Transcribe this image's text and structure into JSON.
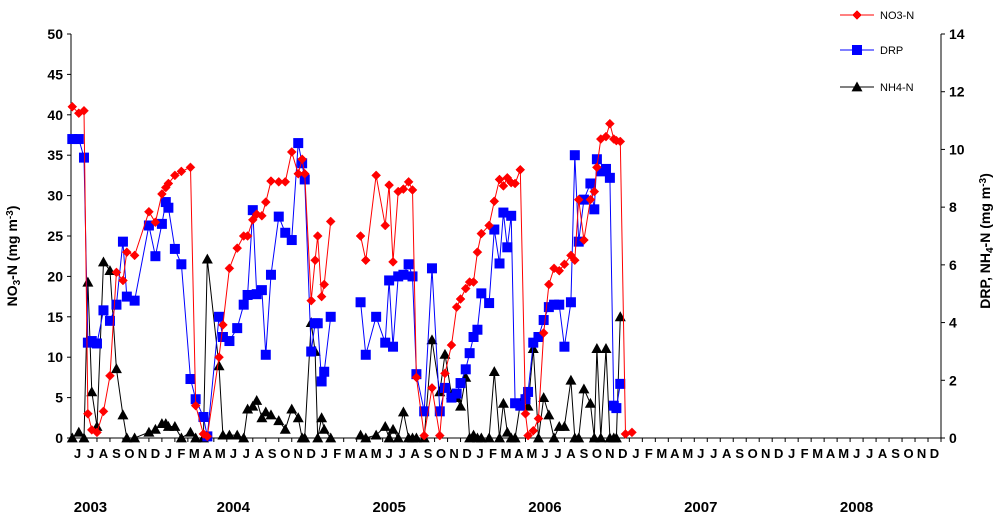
{
  "chart_data": {
    "type": "line",
    "title": "",
    "ylabel_left_parts": [
      "NO",
      "3",
      "-N (mg m",
      "-3",
      ")"
    ],
    "ylabel_right_parts": [
      "DRP, NH",
      "4",
      "-N (mg m",
      "-3",
      ")"
    ],
    "ylim_left": [
      0,
      50
    ],
    "yticks_left": [
      "0",
      "5",
      "10",
      "15",
      "20",
      "25",
      "30",
      "35",
      "40",
      "45",
      "50"
    ],
    "ylim_right": [
      0,
      14
    ],
    "yticks_right": [
      "0",
      "2",
      "4",
      "6",
      "8",
      "10",
      "12",
      "14"
    ],
    "x_month_labels": [
      "J",
      "J",
      "A",
      "S",
      "O",
      "N",
      "D",
      "J",
      "F",
      "M",
      "A",
      "M",
      "J",
      "J",
      "A",
      "S",
      "O",
      "N",
      "D",
      "J",
      "F",
      "M",
      "A",
      "M",
      "J",
      "J",
      "A",
      "S",
      "O",
      "N",
      "D",
      "J",
      "F",
      "M",
      "A",
      "M",
      "J",
      "J",
      "A",
      "S",
      "O",
      "N",
      "D",
      "J",
      "F",
      "M",
      "A",
      "M",
      "J",
      "J",
      "A",
      "S",
      "O",
      "N",
      "D",
      "J",
      "F",
      "M",
      "A",
      "M",
      "J",
      "J",
      "A",
      "S",
      "O",
      "N",
      "D"
    ],
    "x_month_index_start": 5,
    "year_labels": [
      {
        "label": "2003",
        "month_index": 6
      },
      {
        "label": "2004",
        "month_index": 17
      },
      {
        "label": "2005",
        "month_index": 29
      },
      {
        "label": "2006",
        "month_index": 41
      },
      {
        "label": "2007",
        "month_index": 53
      },
      {
        "label": "2008",
        "month_index": 65
      }
    ],
    "legend_position": "top-right",
    "series": [
      {
        "name": "NO3-N",
        "axis": "left",
        "color": "#ff0000",
        "marker": "diamond",
        "points": [
          [
            5.1,
            41
          ],
          [
            5.6,
            40.2
          ],
          [
            6,
            40.5
          ],
          [
            6.3,
            3
          ],
          [
            6.6,
            1
          ],
          [
            7,
            0.7
          ],
          [
            7.5,
            3.3
          ],
          [
            8,
            7.7
          ],
          [
            8.5,
            20.5
          ],
          [
            9,
            19.5
          ],
          [
            9.3,
            23
          ],
          [
            9.9,
            22.6
          ],
          [
            11,
            28
          ],
          [
            11.5,
            26.7
          ],
          [
            12,
            30.2
          ],
          [
            12.3,
            31
          ],
          [
            12.5,
            31.5
          ],
          [
            13,
            32.5
          ],
          [
            13.5,
            33
          ],
          [
            14.2,
            33.5
          ],
          [
            14.6,
            4
          ],
          [
            15.2,
            0.5
          ],
          [
            15.5,
            0.2
          ],
          [
            16.4,
            10
          ],
          [
            16.7,
            14
          ],
          [
            17.2,
            21
          ],
          [
            17.8,
            23.5
          ],
          [
            18.3,
            25
          ],
          [
            18.6,
            25
          ],
          [
            19,
            27
          ],
          [
            19.3,
            27.7
          ],
          [
            19.7,
            27.5
          ],
          [
            20,
            29.2
          ],
          [
            20.4,
            31.8
          ],
          [
            21,
            31.7
          ],
          [
            21.5,
            31.7
          ],
          [
            22,
            35.4
          ],
          [
            22.5,
            32.7
          ],
          [
            22.8,
            34.5
          ],
          [
            23,
            32.7
          ],
          [
            23.5,
            17
          ],
          [
            23.8,
            22
          ],
          [
            24,
            25
          ],
          [
            24.3,
            17.5
          ],
          [
            24.5,
            19
          ],
          [
            25,
            26.8
          ],
          [
            27.3,
            25
          ],
          [
            27.7,
            22
          ],
          [
            28.5,
            32.5
          ],
          [
            29.2,
            26.3
          ],
          [
            29.5,
            31.3
          ],
          [
            29.8,
            21.8
          ],
          [
            30.2,
            30.5
          ],
          [
            30.6,
            30.8
          ],
          [
            31,
            31.7
          ],
          [
            31.3,
            30.7
          ],
          [
            31.6,
            7.5
          ],
          [
            32.2,
            0.3
          ],
          [
            32.8,
            6.2
          ],
          [
            33.4,
            0.3
          ],
          [
            33.8,
            8
          ],
          [
            34.3,
            11.5
          ],
          [
            34.7,
            16.2
          ],
          [
            35,
            17.2
          ],
          [
            35.4,
            18.5
          ],
          [
            35.7,
            19.3
          ],
          [
            36,
            19.3
          ],
          [
            36.3,
            23
          ],
          [
            36.6,
            25.3
          ],
          [
            37.2,
            26.3
          ],
          [
            37.6,
            29.3
          ],
          [
            38,
            32
          ],
          [
            38.3,
            31.2
          ],
          [
            38.6,
            32.2
          ],
          [
            38.9,
            31.6
          ],
          [
            39.2,
            31.5
          ],
          [
            39.6,
            33.2
          ],
          [
            40,
            3
          ],
          [
            40.2,
            0.3
          ],
          [
            40.6,
            0.9
          ],
          [
            41,
            2.4
          ],
          [
            41.4,
            13
          ],
          [
            41.8,
            19
          ],
          [
            42.2,
            21
          ],
          [
            42.6,
            20.7
          ],
          [
            43,
            21.5
          ],
          [
            43.5,
            22.6
          ],
          [
            43.8,
            22
          ],
          [
            44.1,
            29.5
          ],
          [
            44.5,
            24.5
          ],
          [
            45,
            29.5
          ],
          [
            45.3,
            30.5
          ],
          [
            45.5,
            33.5
          ],
          [
            45.8,
            37
          ],
          [
            46.2,
            37.3
          ],
          [
            46.5,
            38.9
          ],
          [
            46.8,
            37
          ],
          [
            47,
            36.8
          ],
          [
            47.3,
            36.7
          ],
          [
            47.7,
            0.5
          ],
          [
            48.2,
            0.7
          ]
        ]
      },
      {
        "name": "DRP",
        "axis": "left",
        "color": "#0000ff",
        "marker": "square",
        "points": [
          [
            5.1,
            37
          ],
          [
            5.6,
            37
          ],
          [
            6,
            34.7
          ],
          [
            6.3,
            11.8
          ],
          [
            6.6,
            12
          ],
          [
            7,
            11.7
          ],
          [
            7.5,
            15.8
          ],
          [
            8,
            14.5
          ],
          [
            8.5,
            16.5
          ],
          [
            9,
            24.3
          ],
          [
            9.3,
            17.5
          ],
          [
            9.9,
            17
          ],
          [
            11,
            26.3
          ],
          [
            11.5,
            22.5
          ],
          [
            12,
            26.5
          ],
          [
            12.3,
            29.2
          ],
          [
            12.5,
            28.5
          ],
          [
            13,
            23.4
          ],
          [
            13.5,
            21.5
          ],
          [
            14.2,
            7.3
          ],
          [
            14.6,
            4.8
          ],
          [
            15.2,
            2.6
          ],
          [
            15.5,
            0.2
          ],
          [
            16.4,
            15
          ],
          [
            16.7,
            12.5
          ],
          [
            17.2,
            12
          ],
          [
            17.8,
            13.6
          ],
          [
            18.3,
            16.5
          ],
          [
            18.6,
            17.7
          ],
          [
            19,
            28.2
          ],
          [
            19.3,
            17.8
          ],
          [
            19.7,
            18.3
          ],
          [
            20,
            10.3
          ],
          [
            20.4,
            20.2
          ],
          [
            21,
            27.4
          ],
          [
            21.5,
            25.4
          ],
          [
            22,
            24.5
          ],
          [
            22.5,
            36.5
          ],
          [
            22.8,
            34
          ],
          [
            23,
            32
          ],
          [
            23.5,
            10.7
          ],
          [
            23.8,
            14.2
          ],
          [
            24,
            14.2
          ],
          [
            24.3,
            7
          ],
          [
            24.5,
            8.2
          ],
          [
            25,
            15
          ],
          [
            27.3,
            16.8
          ],
          [
            27.7,
            10.3
          ],
          [
            28.5,
            15
          ],
          [
            29.2,
            11.8
          ],
          [
            29.5,
            19.5
          ],
          [
            29.8,
            11.3
          ],
          [
            30.2,
            20
          ],
          [
            30.6,
            20.2
          ],
          [
            31,
            21.5
          ],
          [
            31.3,
            20
          ],
          [
            31.6,
            7.9
          ],
          [
            32.2,
            3.3
          ],
          [
            32.8,
            21
          ],
          [
            33.4,
            3.3
          ],
          [
            33.8,
            6.2
          ],
          [
            34.3,
            5
          ],
          [
            34.7,
            5.5
          ],
          [
            35,
            6.8
          ],
          [
            35.4,
            8.5
          ],
          [
            35.7,
            10.5
          ],
          [
            36,
            12.5
          ],
          [
            36.3,
            13.4
          ],
          [
            36.6,
            17.9
          ],
          [
            37.2,
            16.7
          ],
          [
            37.6,
            25.8
          ],
          [
            38,
            21.6
          ],
          [
            38.3,
            27.9
          ],
          [
            38.6,
            23.6
          ],
          [
            38.9,
            27.5
          ],
          [
            39.2,
            4.3
          ],
          [
            39.6,
            4
          ],
          [
            40,
            4.8
          ],
          [
            40.2,
            5.7
          ],
          [
            40.6,
            11.8
          ],
          [
            41,
            12.5
          ],
          [
            41.4,
            14.6
          ],
          [
            41.8,
            16.2
          ],
          [
            42.2,
            16.5
          ],
          [
            42.6,
            16.5
          ],
          [
            43,
            11.3
          ],
          [
            43.5,
            16.8
          ],
          [
            43.8,
            35
          ],
          [
            44.1,
            24.3
          ],
          [
            44.5,
            29.5
          ],
          [
            45,
            31.5
          ],
          [
            45.3,
            28.3
          ],
          [
            45.5,
            34.5
          ],
          [
            45.8,
            33
          ],
          [
            46.2,
            33.3
          ],
          [
            46.5,
            32.2
          ],
          [
            46.8,
            4
          ],
          [
            47,
            3.7
          ],
          [
            47.3,
            6.7
          ]
        ]
      },
      {
        "name": "NH4-N",
        "axis": "right",
        "color": "#000000",
        "marker": "triangle",
        "points": [
          [
            5.1,
            0
          ],
          [
            5.6,
            0.2
          ],
          [
            6,
            0
          ],
          [
            6.3,
            5.4
          ],
          [
            6.6,
            1.6
          ],
          [
            7,
            0.4
          ],
          [
            7.5,
            6.1
          ],
          [
            8,
            5.8
          ],
          [
            8.5,
            2.4
          ],
          [
            9,
            0.8
          ],
          [
            9.3,
            0
          ],
          [
            9.9,
            0
          ],
          [
            11,
            0.2
          ],
          [
            11.5,
            0.3
          ],
          [
            12,
            0.5
          ],
          [
            12.3,
            0.5
          ],
          [
            12.5,
            0.4
          ],
          [
            13,
            0.4
          ],
          [
            13.5,
            0
          ],
          [
            14.2,
            0.2
          ],
          [
            14.6,
            0
          ],
          [
            15.2,
            0
          ],
          [
            15.5,
            6.2
          ],
          [
            16.4,
            2.5
          ],
          [
            16.7,
            0.1
          ],
          [
            17.2,
            0.1
          ],
          [
            17.8,
            0.1
          ],
          [
            18.3,
            0
          ],
          [
            18.6,
            1
          ],
          [
            19,
            1.1
          ],
          [
            19.3,
            1.3
          ],
          [
            19.7,
            0.7
          ],
          [
            20,
            0.9
          ],
          [
            20.4,
            0.8
          ],
          [
            21,
            0.6
          ],
          [
            21.5,
            0.3
          ],
          [
            22,
            1
          ],
          [
            22.5,
            0.7
          ],
          [
            22.8,
            0
          ],
          [
            23,
            0
          ],
          [
            23.5,
            4
          ],
          [
            23.8,
            3
          ],
          [
            24,
            0
          ],
          [
            24.3,
            0.7
          ],
          [
            24.5,
            0.3
          ],
          [
            25,
            0
          ],
          [
            27.3,
            0.1
          ],
          [
            27.7,
            0
          ],
          [
            28.5,
            0.1
          ],
          [
            29.2,
            0.4
          ],
          [
            29.5,
            0
          ],
          [
            29.8,
            0.3
          ],
          [
            30.2,
            0
          ],
          [
            30.6,
            0.9
          ],
          [
            31,
            0
          ],
          [
            31.3,
            0
          ],
          [
            31.6,
            0
          ],
          [
            32.2,
            0
          ],
          [
            32.8,
            3.4
          ],
          [
            33.4,
            1.6
          ],
          [
            33.8,
            2.9
          ],
          [
            34.3,
            1.5
          ],
          [
            34.7,
            1.4
          ],
          [
            35,
            1.1
          ],
          [
            35.4,
            2.1
          ],
          [
            35.7,
            0
          ],
          [
            36,
            0.1
          ],
          [
            36.3,
            0
          ],
          [
            36.6,
            0
          ],
          [
            37.2,
            0
          ],
          [
            37.6,
            2.3
          ],
          [
            38,
            0
          ],
          [
            38.3,
            1.2
          ],
          [
            38.6,
            0.2
          ],
          [
            38.9,
            0
          ],
          [
            39.2,
            0
          ],
          [
            39.6,
            1.2
          ],
          [
            40,
            1.5
          ],
          [
            40.2,
            1.1
          ],
          [
            40.6,
            3.1
          ],
          [
            41,
            0
          ],
          [
            41.4,
            1.4
          ],
          [
            41.8,
            0.8
          ],
          [
            42.2,
            0
          ],
          [
            42.6,
            0.4
          ],
          [
            43,
            0.4
          ],
          [
            43.5,
            2
          ],
          [
            43.8,
            0
          ],
          [
            44.1,
            0
          ],
          [
            44.5,
            1.7
          ],
          [
            45,
            1.2
          ],
          [
            45.3,
            0
          ],
          [
            45.5,
            3.1
          ],
          [
            45.8,
            0
          ],
          [
            46.2,
            3.1
          ],
          [
            46.5,
            0
          ],
          [
            46.8,
            0
          ],
          [
            47,
            0
          ],
          [
            47.3,
            4.2
          ]
        ]
      }
    ]
  }
}
